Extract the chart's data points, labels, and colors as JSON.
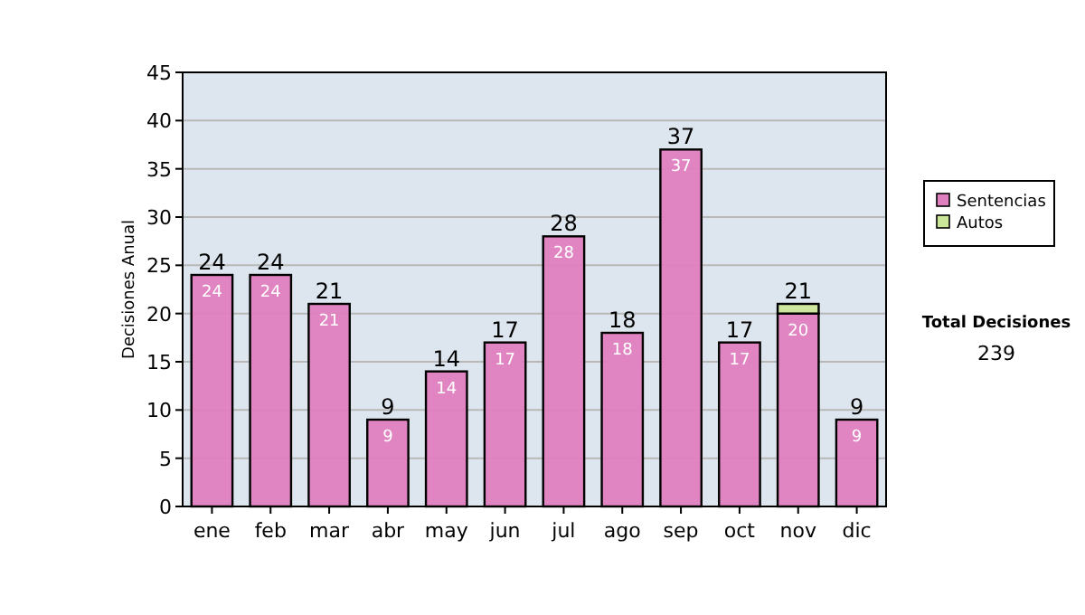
{
  "chart_data": {
    "type": "bar",
    "stacked": true,
    "ylabel": "Decisiones Anual",
    "categories": [
      "ene",
      "feb",
      "mar",
      "abr",
      "may",
      "jun",
      "jul",
      "ago",
      "sep",
      "oct",
      "nov",
      "dic"
    ],
    "series": [
      {
        "name": "Sentencias",
        "color": "#df7fbf",
        "values": [
          24,
          24,
          21,
          9,
          14,
          17,
          28,
          18,
          37,
          17,
          20,
          9
        ],
        "value_labels": [
          "24",
          "24",
          "21",
          "9",
          "14",
          "17",
          "28",
          "18",
          "37",
          "17",
          "20",
          "9"
        ]
      },
      {
        "name": "Autos",
        "color": "#cce699",
        "values": [
          0,
          0,
          0,
          0,
          0,
          0,
          0,
          0,
          0,
          0,
          1,
          0
        ]
      }
    ],
    "totals": [
      "24",
      "24",
      "21",
      "9",
      "14",
      "17",
      "28",
      "18",
      "37",
      "17",
      "21",
      "9"
    ],
    "ylim": [
      0,
      45
    ],
    "yticks": [
      0,
      5,
      10,
      15,
      20,
      25,
      30,
      35,
      40,
      45
    ],
    "grid": "y",
    "legend": "right",
    "annotations": [
      "Total Decisiones",
      "239"
    ]
  }
}
